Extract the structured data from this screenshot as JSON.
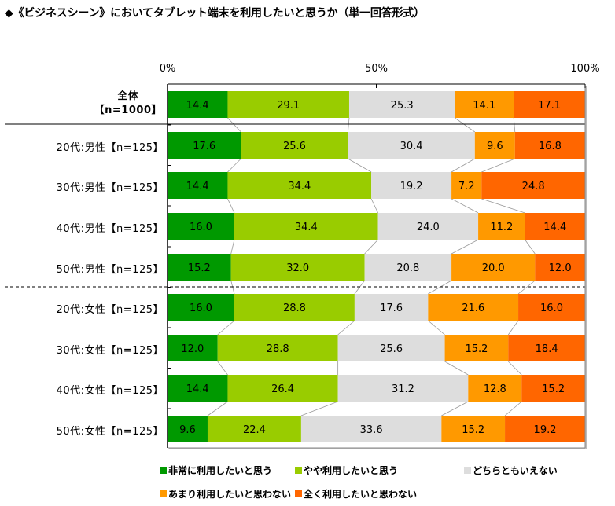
{
  "title": "◆《ビジネスシーン》においてタブレット端末を利用したいと思うか（単一回答形式）",
  "chart_data": {
    "type": "bar",
    "orientation": "horizontal",
    "stacked": "percent",
    "title": "◆《ビジネスシーン》においてタブレット端末を利用したいと思うか（単一回答形式）",
    "xlabel": "",
    "ylabel": "",
    "xlim": [
      0,
      100
    ],
    "x_ticks": [
      "0%",
      "50%",
      "100%"
    ],
    "grid": false,
    "legend_position": "bottom",
    "categories": [
      {
        "line1": "全体",
        "line2": "【n=1000】",
        "label": "全体【n=1000】",
        "total": true
      },
      {
        "label": "20代:男性【n=125】"
      },
      {
        "label": "30代:男性【n=125】"
      },
      {
        "label": "40代:男性【n=125】"
      },
      {
        "label": "50代:男性【n=125】"
      },
      {
        "label": "20代:女性【n=125】"
      },
      {
        "label": "30代:女性【n=125】"
      },
      {
        "label": "40代:女性【n=125】"
      },
      {
        "label": "50代:女性【n=125】"
      }
    ],
    "series": [
      {
        "name": "非常に利用したいと思う",
        "color": "#009900",
        "values": [
          14.4,
          17.6,
          14.4,
          16.0,
          15.2,
          16.0,
          12.0,
          14.4,
          9.6
        ]
      },
      {
        "name": "やや利用したいと思う",
        "color": "#99CC00",
        "values": [
          29.1,
          25.6,
          34.4,
          34.4,
          32.0,
          28.8,
          28.8,
          26.4,
          22.4
        ]
      },
      {
        "name": "どちらともいえない",
        "color": "#DDDDDD",
        "values": [
          25.3,
          30.4,
          19.2,
          24.0,
          20.8,
          17.6,
          25.6,
          31.2,
          33.6
        ]
      },
      {
        "name": "あまり利用したいと思わない",
        "color": "#FF9900",
        "values": [
          14.1,
          9.6,
          7.2,
          11.2,
          20.0,
          21.6,
          15.2,
          12.8,
          15.2
        ]
      },
      {
        "name": "全く利用したいと思わない",
        "color": "#FF6600",
        "values": [
          17.1,
          16.8,
          24.8,
          14.4,
          12.0,
          16.0,
          18.4,
          15.2,
          19.2
        ]
      }
    ],
    "separators": [
      {
        "after_category": 0,
        "style": "solid"
      },
      {
        "after_category": 4,
        "style": "dashed"
      }
    ]
  }
}
